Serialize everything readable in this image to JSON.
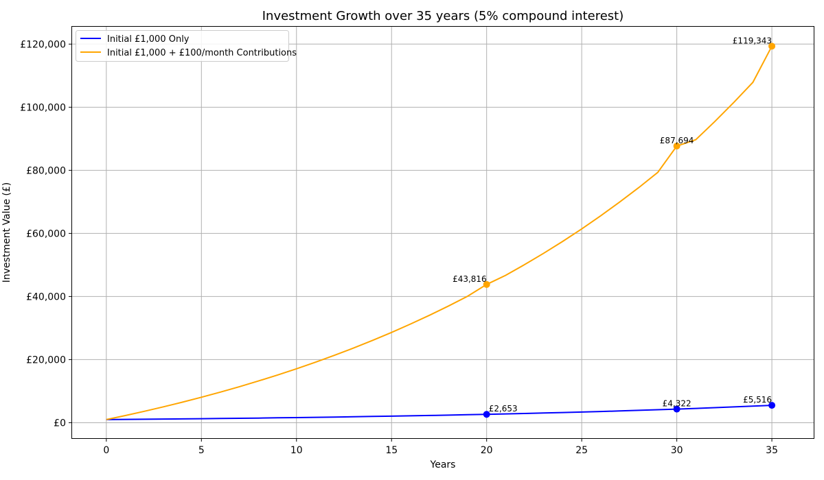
{
  "chart_data": {
    "type": "line",
    "title": "Investment Growth over 35 years (5% compound interest)",
    "xlabel": "Years",
    "ylabel": "Investment Value (£)",
    "xlim": [
      -1.8,
      37.2
    ],
    "ylim": [
      -4900,
      125500
    ],
    "xticks": [
      0,
      5,
      10,
      15,
      20,
      25,
      30,
      35
    ],
    "xtick_labels": [
      "0",
      "5",
      "10",
      "15",
      "20",
      "25",
      "30",
      "35"
    ],
    "yticks": [
      0,
      20000,
      40000,
      60000,
      80000,
      100000,
      120000
    ],
    "ytick_labels": [
      "£0",
      "£20,000",
      "£40,000",
      "£60,000",
      "£80,000",
      "£100,000",
      "£120,000"
    ],
    "grid": true,
    "legend_position": "upper-left",
    "x": [
      0,
      1,
      2,
      3,
      4,
      5,
      6,
      7,
      8,
      9,
      10,
      11,
      12,
      13,
      14,
      15,
      16,
      17,
      18,
      19,
      20,
      21,
      22,
      23,
      24,
      25,
      26,
      27,
      28,
      29,
      30,
      31,
      32,
      33,
      34,
      35
    ],
    "series": [
      {
        "name": "Initial £1,000 Only",
        "color": "#0000ff",
        "values": [
          1000,
          1050,
          1103,
          1158,
          1216,
          1276,
          1340,
          1407,
          1477,
          1551,
          1629,
          1710,
          1796,
          1886,
          1980,
          2079,
          2183,
          2292,
          2407,
          2527,
          2653,
          2786,
          2925,
          3072,
          3225,
          3386,
          3556,
          3733,
          3920,
          4116,
          4322,
          4538,
          4765,
          5003,
          5253,
          5516
        ],
        "markers": [
          {
            "x": 20,
            "y": 2653,
            "label": "£2,653"
          },
          {
            "x": 30,
            "y": 4322,
            "label": "£4,322"
          },
          {
            "x": 35,
            "y": 5516,
            "label": "£5,516"
          }
        ]
      },
      {
        "name": "Initial £1,000 + £100/month Contributions",
        "color": "#ffa500",
        "values": [
          1000,
          2280,
          3623,
          5034,
          6515,
          8070,
          9704,
          11419,
          13220,
          15111,
          17096,
          19181,
          21370,
          23668,
          26082,
          28615,
          31276,
          34070,
          37003,
          40083,
          43816,
          46713,
          50129,
          53715,
          57481,
          61435,
          65587,
          69946,
          74523,
          79329,
          87694,
          89709,
          95475,
          101529,
          107885,
          119343
        ],
        "markers": [
          {
            "x": 20,
            "y": 43816,
            "label": "£43,816"
          },
          {
            "x": 30,
            "y": 87694,
            "label": "£87,694"
          },
          {
            "x": 35,
            "y": 119343,
            "label": "£119,343"
          }
        ]
      }
    ]
  }
}
